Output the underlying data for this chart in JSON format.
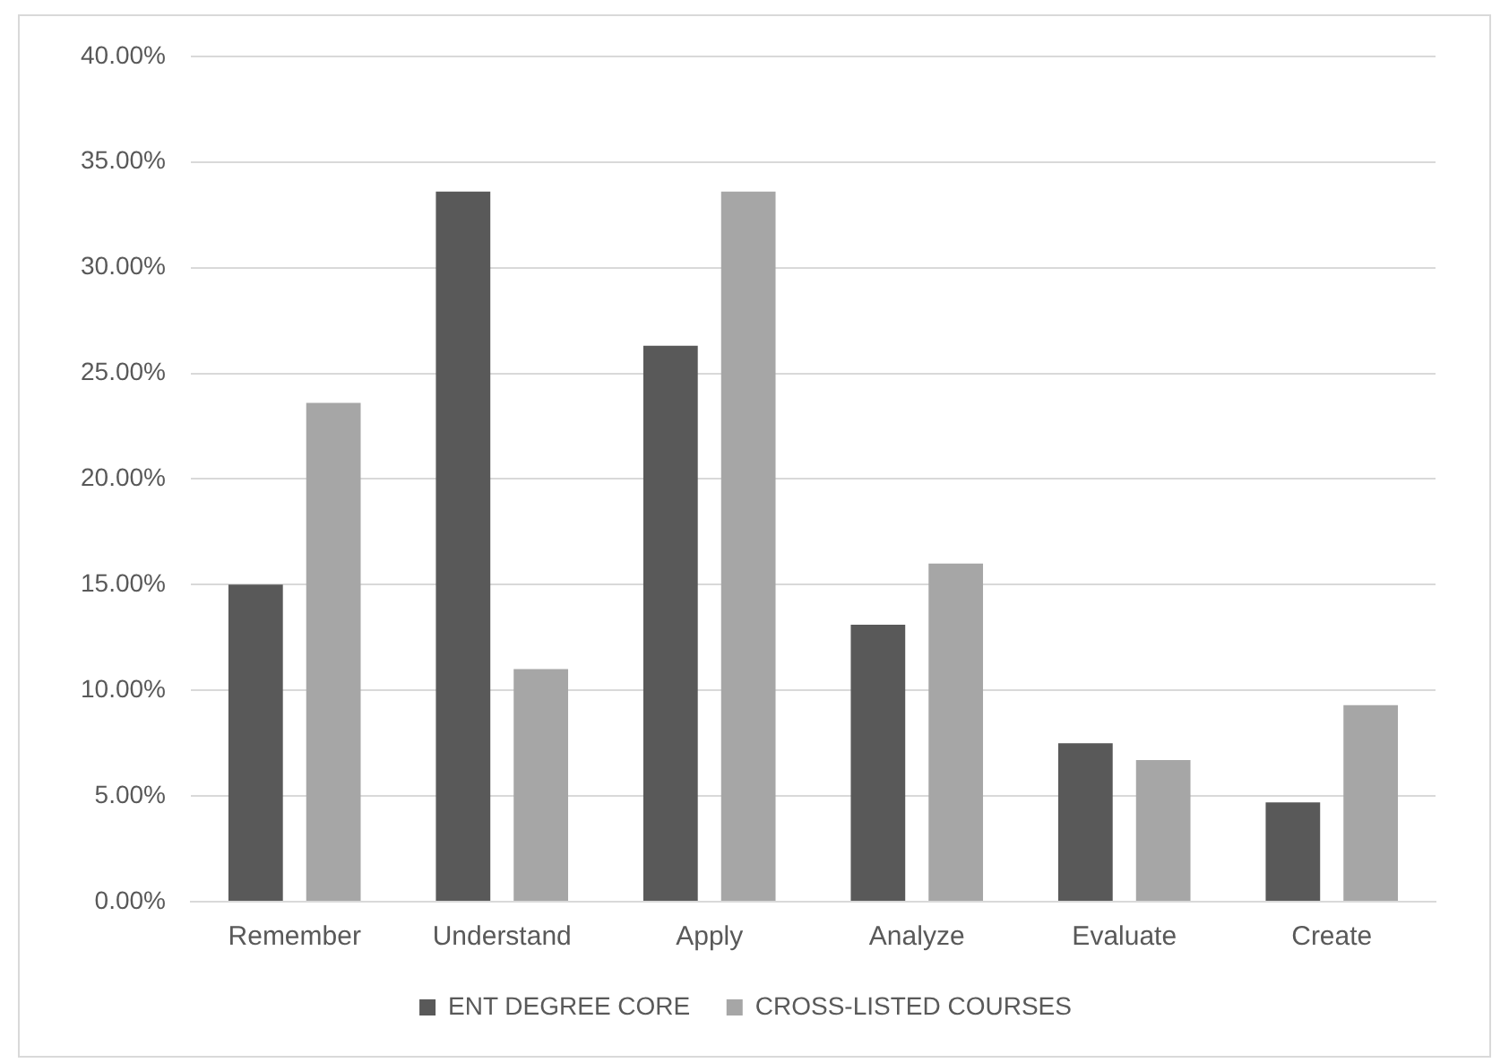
{
  "chart_data": {
    "type": "bar",
    "categories": [
      "Remember",
      "Understand",
      "Apply",
      "Analyze",
      "Evaluate",
      "Create"
    ],
    "series": [
      {
        "name": "ENT DEGREE CORE",
        "color": "#595959",
        "values": [
          15.0,
          33.6,
          26.3,
          13.1,
          7.5,
          4.7
        ]
      },
      {
        "name": "CROSS-LISTED COURSES",
        "color": "#a6a6a6",
        "values": [
          23.6,
          11.0,
          33.6,
          16.0,
          6.7,
          9.3
        ]
      }
    ],
    "ylim": [
      0,
      40
    ],
    "yticks": [
      {
        "value": 0,
        "label": "0.00%"
      },
      {
        "value": 5,
        "label": "5.00%"
      },
      {
        "value": 10,
        "label": "10.00%"
      },
      {
        "value": 15,
        "label": "15.00%"
      },
      {
        "value": 20,
        "label": "20.00%"
      },
      {
        "value": 25,
        "label": "25.00%"
      },
      {
        "value": 30,
        "label": "30.00%"
      },
      {
        "value": 35,
        "label": "35.00%"
      },
      {
        "value": 40,
        "label": "40.00%"
      }
    ],
    "grid": "y",
    "legend": "bottom"
  }
}
